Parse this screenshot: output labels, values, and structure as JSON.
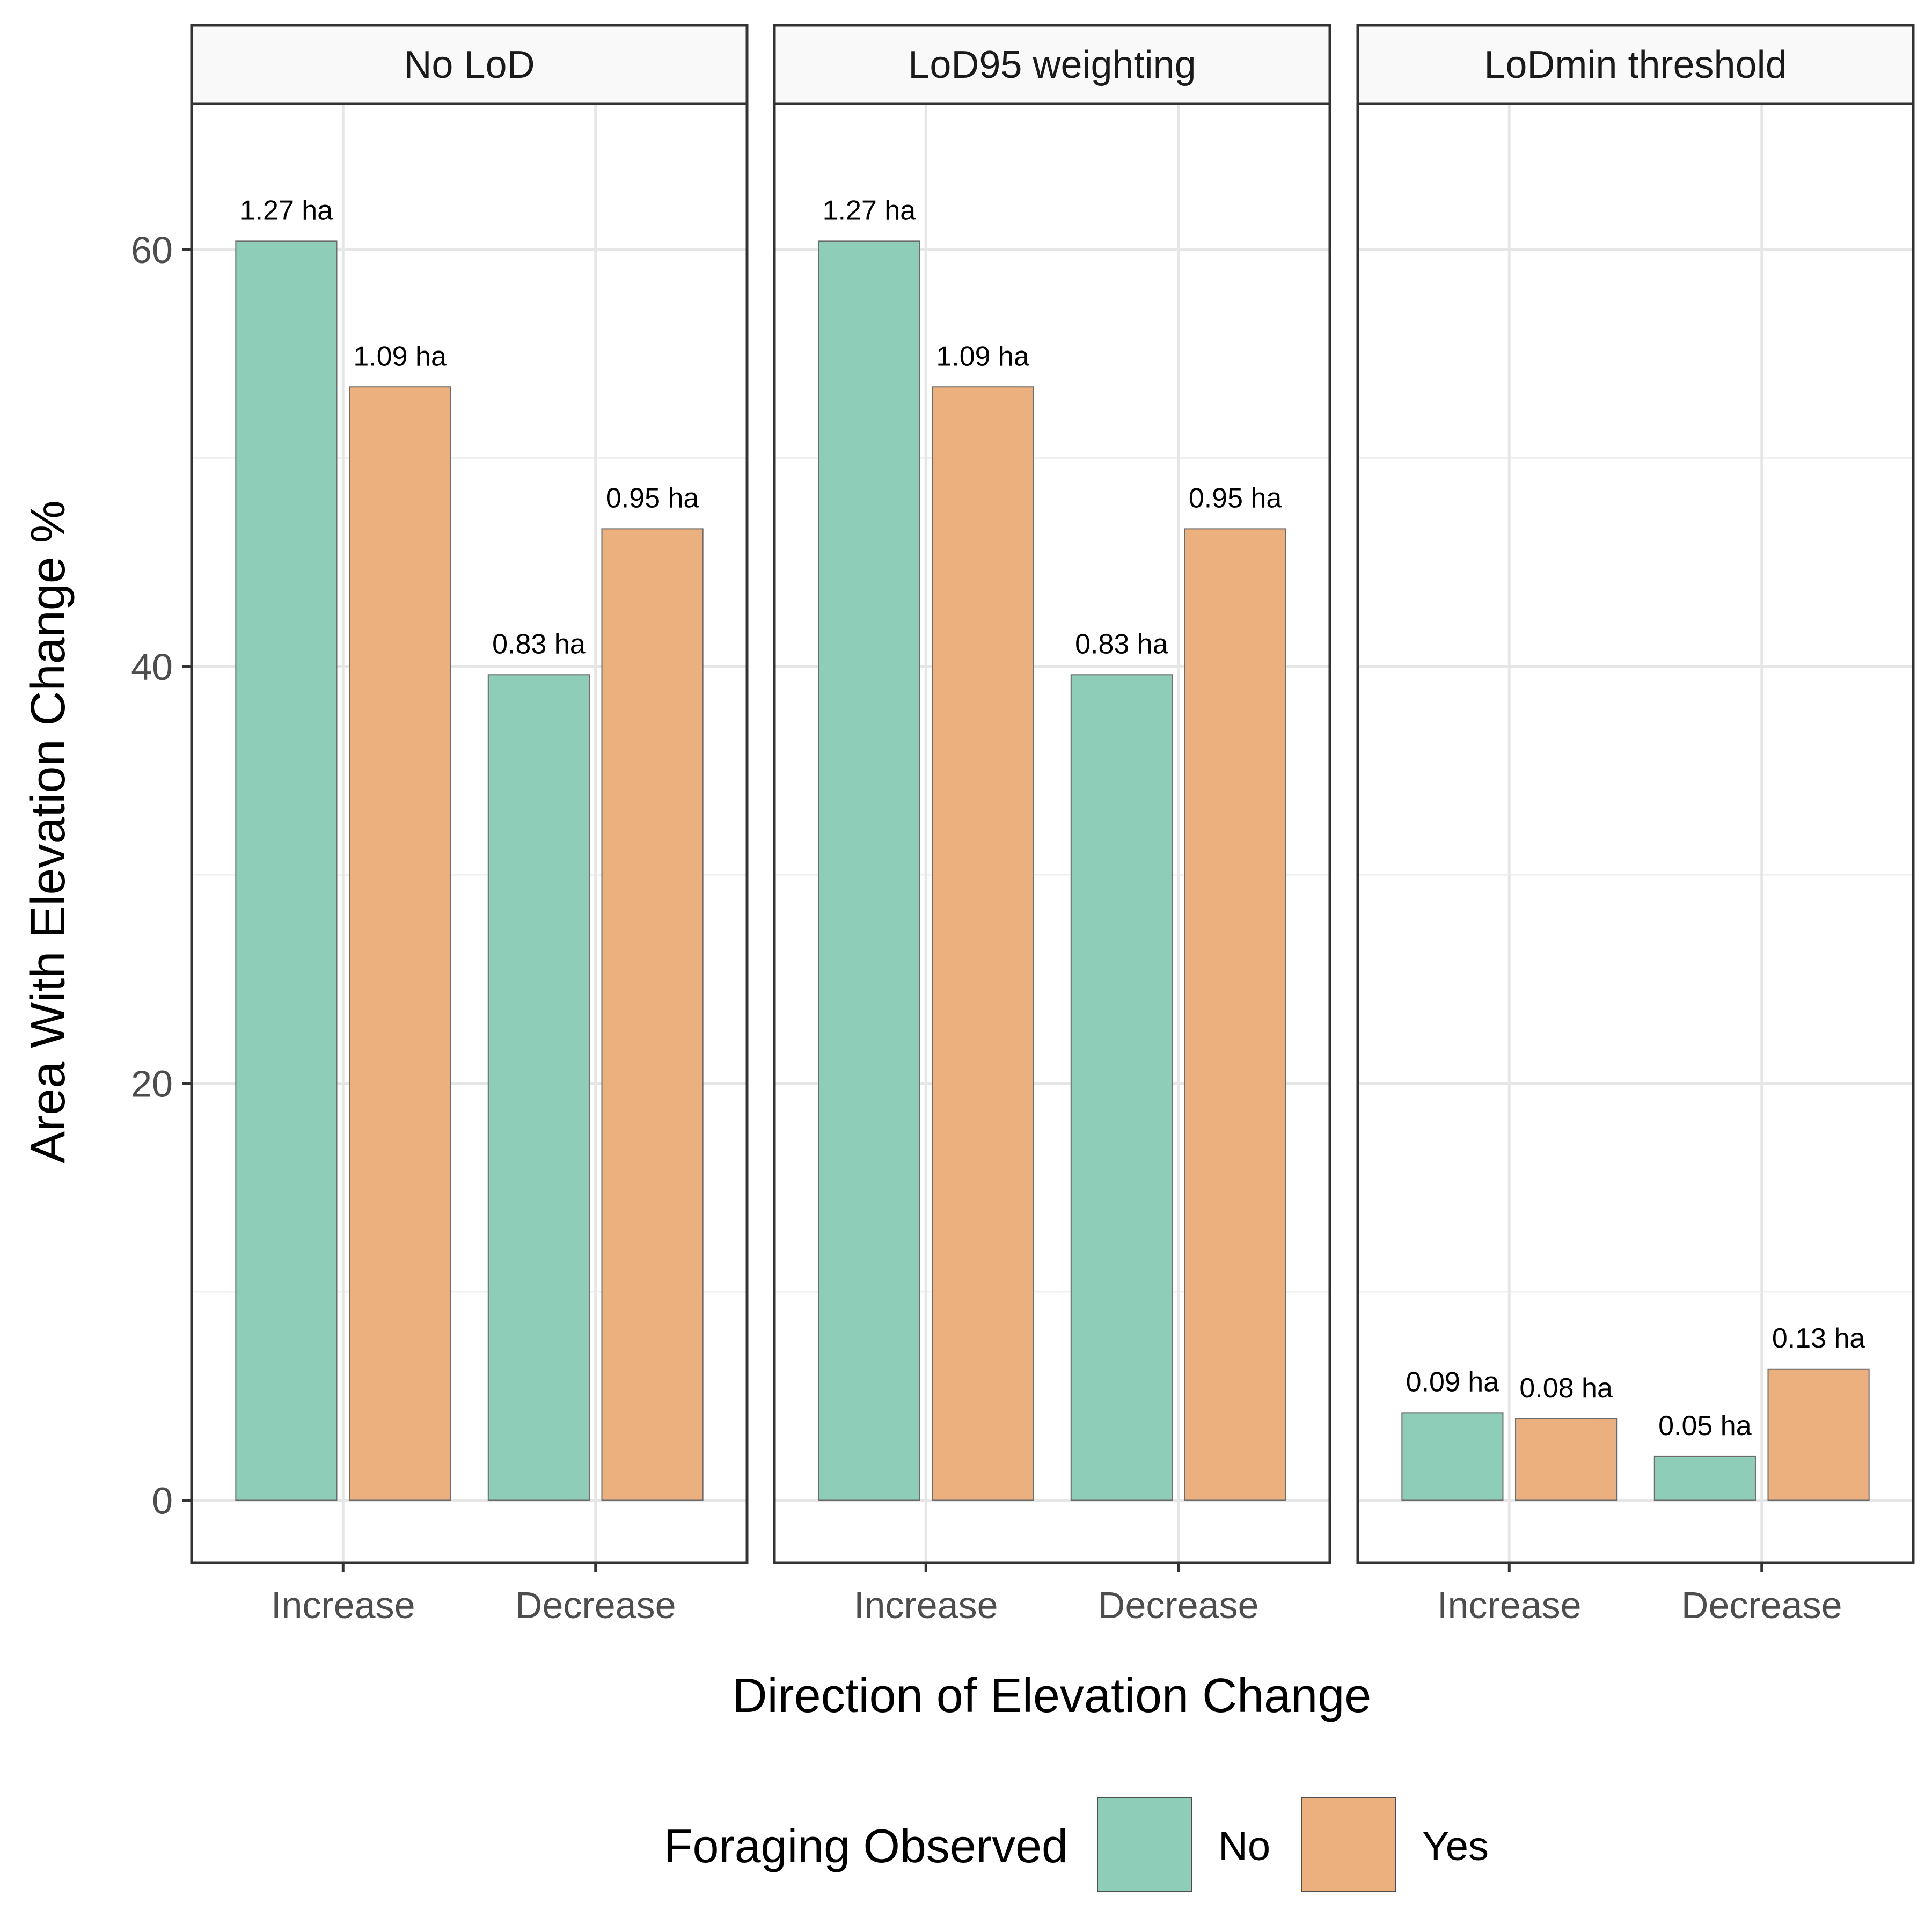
{
  "chart_data": {
    "type": "bar",
    "facets": [
      {
        "title": "No LoD",
        "categories": [
          "Increase",
          "Decrease"
        ],
        "series": [
          {
            "name": "No",
            "values": [
              60.4,
              39.6
            ],
            "labels": [
              "1.27 ha",
              "0.83 ha"
            ]
          },
          {
            "name": "Yes",
            "values": [
              53.4,
              46.6
            ],
            "labels": [
              "1.09 ha",
              "0.95 ha"
            ]
          }
        ]
      },
      {
        "title": "LoD95 weighting",
        "categories": [
          "Increase",
          "Decrease"
        ],
        "series": [
          {
            "name": "No",
            "values": [
              60.4,
              39.6
            ],
            "labels": [
              "1.27 ha",
              "0.83 ha"
            ]
          },
          {
            "name": "Yes",
            "values": [
              53.4,
              46.6
            ],
            "labels": [
              "1.09 ha",
              "0.95 ha"
            ]
          }
        ]
      },
      {
        "title": "LoDmin threshold",
        "categories": [
          "Increase",
          "Decrease"
        ],
        "series": [
          {
            "name": "No",
            "values": [
              4.2,
              2.1
            ],
            "labels": [
              "0.09 ha",
              "0.05 ha"
            ]
          },
          {
            "name": "Yes",
            "values": [
              3.9,
              6.3
            ],
            "labels": [
              "0.08 ha",
              "0.13 ha"
            ]
          }
        ]
      }
    ],
    "xlabel": "Direction of Elevation Change",
    "ylabel": "Area With Elevation Change %",
    "ylim": [
      -3,
      67
    ],
    "yticks": [
      0,
      20,
      40,
      60
    ],
    "grid": true,
    "legend": {
      "title": "Foraging Observed",
      "position": "bottom",
      "entries": [
        "No",
        "Yes"
      ]
    },
    "colors": {
      "No": "#8ECDB7",
      "Yes": "#ECAF7E"
    }
  }
}
